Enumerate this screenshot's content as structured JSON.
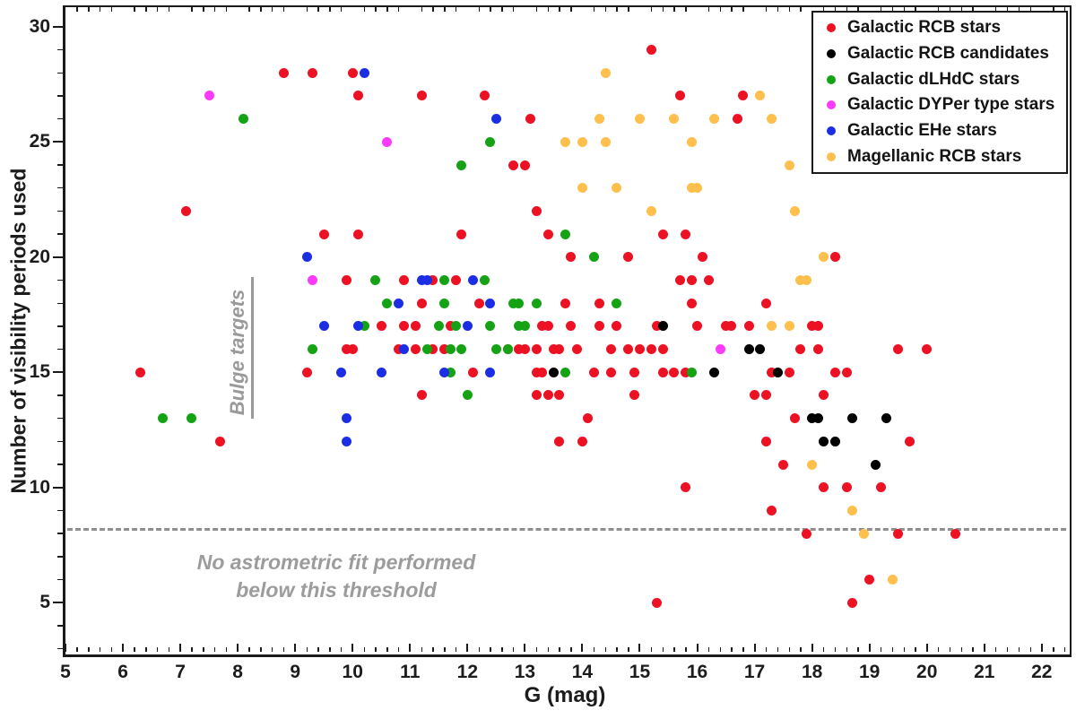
{
  "figure_title": "",
  "axes": {
    "x_axis": {
      "label": "G  (mag)",
      "min": 5,
      "max": 22.44,
      "major_tick_values": [
        5,
        6,
        7,
        8,
        9,
        10,
        11,
        12,
        13,
        14,
        15,
        16,
        17,
        18,
        19,
        20,
        21,
        22
      ],
      "tick_labels": [
        "5",
        "6",
        "7",
        "8",
        "9",
        "10",
        "11",
        "12",
        "13",
        "14",
        "15",
        "16",
        "17",
        "18",
        "19",
        "20",
        "21",
        "22"
      ],
      "minor_tick_step": 0.2
    },
    "y_axis": {
      "label": "Number of visibility periods used",
      "min": 2.87,
      "max": 30.85,
      "major_tick_values": [
        5,
        10,
        15,
        20,
        25,
        30
      ],
      "tick_labels": [
        "5",
        "10",
        "15",
        "20",
        "25",
        "30"
      ],
      "minor_tick_step": 1
    }
  },
  "annotations": {
    "bulge": {
      "text": "Bulge targets",
      "color": "#9a9a9a"
    },
    "threshold": {
      "y_value": 8.2,
      "line1": "No astrometric fit performed",
      "line2": "below this threshold",
      "color": "#9c9c9c"
    }
  },
  "legend": {
    "position": "upper right",
    "items": [
      {
        "label": "Galactic RCB stars",
        "color": "#ec1123"
      },
      {
        "label": "Galactic RCB candidates",
        "color": "#000000"
      },
      {
        "label": "Galactic dLHdC stars",
        "color": "#15a315"
      },
      {
        "label": "Galactic DYPer type stars",
        "color": "#fb3bfb"
      },
      {
        "label": "Galactic EHe stars",
        "color": "#1c2ee4"
      },
      {
        "label": "Magellanic RCB stars",
        "color": "#fdc04d"
      }
    ]
  },
  "chart_data": {
    "type": "scatter",
    "title": "",
    "xlabel": "G  (mag)",
    "ylabel": "Number of visibility periods used",
    "xlim": [
      5,
      22.44
    ],
    "ylim": [
      2.87,
      30.85
    ],
    "grid": false,
    "legend_position": "upper right",
    "threshold_line": {
      "y": 8.2,
      "style": "dashed",
      "color": "#8f8f8f"
    },
    "series": [
      {
        "name": "Galactic RCB stars",
        "color": "#ec1123",
        "points": [
          [
            15.2,
            29
          ],
          [
            8.8,
            28
          ],
          [
            9.3,
            28
          ],
          [
            10,
            28
          ],
          [
            10.1,
            27
          ],
          [
            11.2,
            27
          ],
          [
            12.3,
            27
          ],
          [
            15.7,
            27
          ],
          [
            16.8,
            27
          ],
          [
            13.1,
            26
          ],
          [
            16.7,
            26
          ],
          [
            12.8,
            24
          ],
          [
            13,
            24
          ],
          [
            7.1,
            22
          ],
          [
            13.2,
            22
          ],
          [
            9.5,
            21
          ],
          [
            10.1,
            21
          ],
          [
            11.9,
            21
          ],
          [
            13.4,
            21
          ],
          [
            15.4,
            21
          ],
          [
            15.8,
            21
          ],
          [
            13.8,
            20
          ],
          [
            14.8,
            20
          ],
          [
            16.1,
            20
          ],
          [
            18.4,
            20
          ],
          [
            9.9,
            19
          ],
          [
            10.9,
            19
          ],
          [
            11.4,
            19
          ],
          [
            11.8,
            19
          ],
          [
            15.7,
            19
          ],
          [
            15.9,
            19
          ],
          [
            16.2,
            19
          ],
          [
            11.2,
            18
          ],
          [
            12.2,
            18
          ],
          [
            13.7,
            18
          ],
          [
            14.3,
            18
          ],
          [
            15.9,
            18
          ],
          [
            17.2,
            18
          ],
          [
            10.5,
            17
          ],
          [
            10.9,
            17
          ],
          [
            11.1,
            17
          ],
          [
            11.7,
            17
          ],
          [
            13.3,
            17
          ],
          [
            13.4,
            17
          ],
          [
            13.8,
            17
          ],
          [
            14.3,
            17
          ],
          [
            14.6,
            17
          ],
          [
            15.3,
            17
          ],
          [
            16,
            17
          ],
          [
            16.5,
            17
          ],
          [
            16.6,
            17
          ],
          [
            16.9,
            17
          ],
          [
            18,
            17
          ],
          [
            18.1,
            17
          ],
          [
            9.9,
            16
          ],
          [
            10,
            16
          ],
          [
            10.8,
            16
          ],
          [
            11.1,
            16
          ],
          [
            11.4,
            16
          ],
          [
            11.6,
            16
          ],
          [
            12.7,
            16
          ],
          [
            12.9,
            16
          ],
          [
            13,
            16
          ],
          [
            13.2,
            16
          ],
          [
            13.5,
            16
          ],
          [
            13.6,
            16
          ],
          [
            13.9,
            16
          ],
          [
            14.5,
            16
          ],
          [
            14.8,
            16
          ],
          [
            15,
            16
          ],
          [
            15.2,
            16
          ],
          [
            15.4,
            16
          ],
          [
            17.8,
            16
          ],
          [
            18.1,
            16
          ],
          [
            19.5,
            16
          ],
          [
            20,
            16
          ],
          [
            6.3,
            15
          ],
          [
            9.2,
            15
          ],
          [
            12.1,
            15
          ],
          [
            13.2,
            15
          ],
          [
            13.3,
            15
          ],
          [
            14.2,
            15
          ],
          [
            14.5,
            15
          ],
          [
            14.9,
            15
          ],
          [
            15.4,
            15
          ],
          [
            15.6,
            15
          ],
          [
            15.8,
            15
          ],
          [
            17.3,
            15
          ],
          [
            17.6,
            15
          ],
          [
            18.4,
            15
          ],
          [
            18.6,
            15
          ],
          [
            11.2,
            14
          ],
          [
            13.2,
            14
          ],
          [
            13.4,
            14
          ],
          [
            13.6,
            14
          ],
          [
            14.9,
            14
          ],
          [
            17,
            14
          ],
          [
            17.2,
            14
          ],
          [
            18.2,
            14
          ],
          [
            14.1,
            13
          ],
          [
            17.7,
            13
          ],
          [
            7.7,
            12
          ],
          [
            13.6,
            12
          ],
          [
            14,
            12
          ],
          [
            17.2,
            12
          ],
          [
            19.7,
            12
          ],
          [
            17.5,
            11
          ],
          [
            15.8,
            10
          ],
          [
            18.2,
            10
          ],
          [
            18.6,
            10
          ],
          [
            19.2,
            10
          ],
          [
            17.3,
            9
          ],
          [
            17.9,
            8
          ],
          [
            19.5,
            8
          ],
          [
            20.5,
            8
          ],
          [
            19,
            6
          ],
          [
            15.3,
            5
          ],
          [
            18.7,
            5
          ]
        ]
      },
      {
        "name": "Galactic RCB candidates",
        "color": "#000000",
        "points": [
          [
            15.4,
            17
          ],
          [
            16.9,
            16
          ],
          [
            17.1,
            16
          ],
          [
            13.5,
            15
          ],
          [
            16.3,
            15
          ],
          [
            17.4,
            15
          ],
          [
            18,
            13
          ],
          [
            18.1,
            13
          ],
          [
            18.7,
            13
          ],
          [
            19.3,
            13
          ],
          [
            18.2,
            12
          ],
          [
            18.4,
            12
          ],
          [
            19.1,
            11
          ]
        ]
      },
      {
        "name": "Galactic dLHdC stars",
        "color": "#15a315",
        "points": [
          [
            8.1,
            26
          ],
          [
            12.4,
            25
          ],
          [
            11.9,
            24
          ],
          [
            13.7,
            21
          ],
          [
            14.2,
            20
          ],
          [
            10.4,
            19
          ],
          [
            11.6,
            19
          ],
          [
            12.3,
            19
          ],
          [
            10.6,
            18
          ],
          [
            11.6,
            18
          ],
          [
            12.8,
            18
          ],
          [
            12.9,
            18
          ],
          [
            13.2,
            18
          ],
          [
            14.6,
            18
          ],
          [
            10.2,
            17
          ],
          [
            11.5,
            17
          ],
          [
            11.8,
            17
          ],
          [
            12.4,
            17
          ],
          [
            12.9,
            17
          ],
          [
            13,
            17
          ],
          [
            9.3,
            16
          ],
          [
            11.3,
            16
          ],
          [
            11.7,
            16
          ],
          [
            11.9,
            16
          ],
          [
            12.5,
            16
          ],
          [
            12.7,
            16
          ],
          [
            11.7,
            15
          ],
          [
            13.7,
            15
          ],
          [
            15.9,
            15
          ],
          [
            12,
            14
          ],
          [
            6.7,
            13
          ],
          [
            7.2,
            13
          ]
        ]
      },
      {
        "name": "Galactic DYPer type stars",
        "color": "#fb3bfb",
        "points": [
          [
            7.5,
            27
          ],
          [
            10.6,
            25
          ],
          [
            9.3,
            19
          ],
          [
            16.4,
            16
          ]
        ]
      },
      {
        "name": "Galactic EHe stars",
        "color": "#1c2ee4",
        "points": [
          [
            10.2,
            28
          ],
          [
            12.5,
            26
          ],
          [
            9.2,
            20
          ],
          [
            11.2,
            19
          ],
          [
            11.3,
            19
          ],
          [
            12.1,
            19
          ],
          [
            10.8,
            18
          ],
          [
            12.4,
            18
          ],
          [
            9.5,
            17
          ],
          [
            10.1,
            17
          ],
          [
            12,
            17
          ],
          [
            10.9,
            16
          ],
          [
            9.8,
            15
          ],
          [
            10.5,
            15
          ],
          [
            11.6,
            15
          ],
          [
            12.4,
            15
          ],
          [
            9.9,
            13
          ],
          [
            9.9,
            12
          ]
        ]
      },
      {
        "name": "Magellanic RCB stars",
        "color": "#fdc04d",
        "points": [
          [
            14.4,
            28
          ],
          [
            17.1,
            27
          ],
          [
            14.3,
            26
          ],
          [
            15,
            26
          ],
          [
            15.6,
            26
          ],
          [
            16.3,
            26
          ],
          [
            17.3,
            26
          ],
          [
            13.7,
            25
          ],
          [
            14,
            25
          ],
          [
            14.4,
            25
          ],
          [
            15.9,
            25
          ],
          [
            17.6,
            24
          ],
          [
            14,
            23
          ],
          [
            14.6,
            23
          ],
          [
            15.9,
            23
          ],
          [
            16,
            23
          ],
          [
            15.2,
            22
          ],
          [
            17.7,
            22
          ],
          [
            18.2,
            20
          ],
          [
            17.8,
            19
          ],
          [
            17.9,
            19
          ],
          [
            17.3,
            17
          ],
          [
            17.6,
            17
          ],
          [
            18,
            11
          ],
          [
            18.7,
            9
          ],
          [
            18.9,
            8
          ],
          [
            19.4,
            6
          ]
        ]
      }
    ]
  }
}
